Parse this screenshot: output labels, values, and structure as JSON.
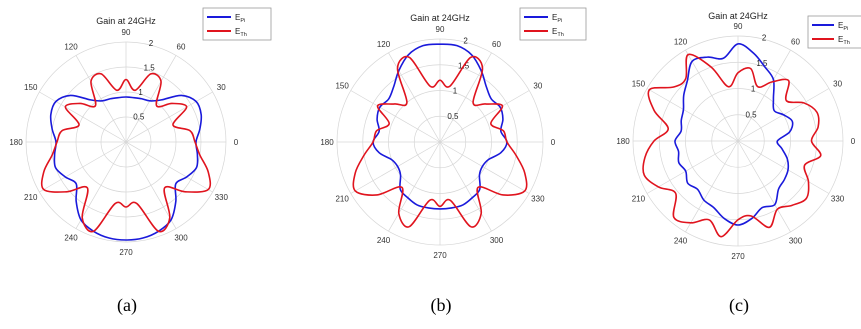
{
  "colors": {
    "pi": "#1a1adb",
    "th": "#e0141e",
    "grid": "#d6d6d6"
  },
  "captions": [
    "(a)",
    "(b)",
    "(c)"
  ],
  "chart_data": [
    {
      "type": "polar-line",
      "title": "Gain at 24GHz",
      "rlim": [
        0,
        2
      ],
      "radial_ticks": [
        "0.5",
        "1",
        "1.5",
        "2"
      ],
      "angle_ticks": [
        "0",
        "30",
        "60",
        "90",
        "120",
        "150",
        "180",
        "210",
        "240",
        "270",
        "300",
        "330"
      ],
      "legend": {
        "position": "top-right",
        "entries": [
          {
            "main": "E",
            "sub": "Pi"
          },
          {
            "main": "E",
            "sub": "Th"
          }
        ]
      },
      "grid": true,
      "series": [
        {
          "key": "pi",
          "theta": [
            0,
            10,
            20,
            30,
            40,
            50,
            60,
            70,
            80,
            90,
            100,
            110,
            120,
            130,
            140,
            150,
            160,
            170,
            180,
            190,
            200,
            210,
            220,
            230,
            240,
            250,
            260,
            270,
            280,
            290,
            300,
            310,
            320,
            330,
            340,
            350
          ],
          "r": [
            1.4,
            1.5,
            1.6,
            1.62,
            1.45,
            1.1,
            0.95,
            0.92,
            0.9,
            0.9,
            0.9,
            0.92,
            0.95,
            1.1,
            1.45,
            1.62,
            1.6,
            1.5,
            1.4,
            1.45,
            1.5,
            1.4,
            1.3,
            1.55,
            1.8,
            1.9,
            1.95,
            1.96,
            1.95,
            1.9,
            1.8,
            1.55,
            1.3,
            1.4,
            1.5,
            1.45
          ]
        },
        {
          "key": "th",
          "theta": [
            0,
            10,
            20,
            30,
            40,
            50,
            60,
            70,
            80,
            90,
            100,
            110,
            120,
            130,
            140,
            150,
            160,
            170,
            180,
            190,
            200,
            210,
            220,
            230,
            240,
            250,
            260,
            270,
            280,
            290,
            300,
            310,
            320,
            330,
            340,
            350
          ],
          "r": [
            1.38,
            1.3,
            1.0,
            1.4,
            1.2,
            0.95,
            1.4,
            1.45,
            1.05,
            1.25,
            1.05,
            1.45,
            1.4,
            0.95,
            1.2,
            1.4,
            1.0,
            1.3,
            1.38,
            1.5,
            1.75,
            1.9,
            1.55,
            1.2,
            1.75,
            1.9,
            1.25,
            1.3,
            1.25,
            1.9,
            1.75,
            1.2,
            1.55,
            1.9,
            1.75,
            1.5
          ]
        }
      ]
    },
    {
      "type": "polar-line",
      "title": "Gain at 24GHz",
      "rlim": [
        0,
        2
      ],
      "radial_ticks": [
        "0.5",
        "1",
        "1.5",
        "2"
      ],
      "angle_ticks": [
        "0",
        "30",
        "60",
        "90",
        "120",
        "150",
        "180",
        "210",
        "240",
        "270",
        "300",
        "330"
      ],
      "legend": {
        "position": "top-right",
        "entries": [
          {
            "main": "E",
            "sub": "Pi"
          },
          {
            "main": "E",
            "sub": "Th"
          }
        ]
      },
      "grid": true,
      "series": [
        {
          "key": "pi",
          "theta": [
            0,
            10,
            20,
            30,
            40,
            50,
            60,
            70,
            80,
            90,
            100,
            110,
            120,
            130,
            140,
            150,
            160,
            170,
            180,
            190,
            200,
            210,
            220,
            230,
            240,
            250,
            260,
            270,
            280,
            290,
            300,
            310,
            320,
            330,
            340,
            350
          ],
          "r": [
            1.3,
            1.2,
            1.3,
            1.35,
            1.3,
            1.4,
            1.6,
            1.8,
            1.9,
            1.9,
            1.9,
            1.8,
            1.6,
            1.4,
            1.3,
            1.35,
            1.3,
            1.2,
            1.3,
            1.2,
            1.0,
            0.95,
            1.0,
            1.2,
            1.25,
            1.3,
            1.3,
            1.3,
            1.3,
            1.3,
            1.25,
            1.2,
            1.0,
            0.95,
            1.0,
            1.2
          ]
        },
        {
          "key": "th",
          "theta": [
            0,
            10,
            20,
            30,
            40,
            50,
            60,
            70,
            80,
            90,
            100,
            110,
            120,
            130,
            140,
            150,
            160,
            170,
            180,
            190,
            200,
            210,
            220,
            230,
            240,
            250,
            260,
            270,
            280,
            290,
            300,
            310,
            320,
            330,
            340,
            350
          ],
          "r": [
            1.3,
            1.25,
            1.05,
            1.4,
            1.15,
            1.0,
            1.65,
            1.75,
            1.1,
            1.2,
            1.1,
            1.75,
            1.65,
            1.0,
            1.15,
            1.4,
            1.05,
            1.25,
            1.3,
            1.5,
            1.75,
            1.9,
            1.6,
            1.15,
            1.6,
            1.75,
            1.15,
            1.25,
            1.15,
            1.75,
            1.6,
            1.15,
            1.6,
            1.9,
            1.75,
            1.5
          ]
        }
      ]
    },
    {
      "type": "polar-line",
      "title": "Gain at 24GHz",
      "rlim": [
        0,
        2
      ],
      "radial_ticks": [
        "0.5",
        "1",
        "1.5",
        "2"
      ],
      "angle_ticks": [
        "0",
        "30",
        "60",
        "90",
        "120",
        "150",
        "180",
        "210",
        "240",
        "270",
        "300",
        "330"
      ],
      "legend": {
        "position": "top-right",
        "entries": [
          {
            "main": "E",
            "sub": "Pi"
          },
          {
            "main": "E",
            "sub": "Th"
          }
        ]
      },
      "grid": true,
      "series": [
        {
          "key": "pi",
          "theta": [
            0,
            10,
            20,
            30,
            40,
            50,
            60,
            70,
            80,
            90,
            100,
            110,
            120,
            130,
            140,
            150,
            160,
            170,
            180,
            190,
            200,
            210,
            220,
            230,
            240,
            250,
            260,
            270,
            280,
            290,
            300,
            310,
            320,
            330,
            340,
            350
          ],
          "r": [
            0.75,
            1.0,
            1.1,
            1.0,
            0.9,
            1.05,
            1.35,
            1.5,
            1.7,
            1.85,
            1.6,
            1.7,
            1.75,
            1.5,
            1.35,
            1.2,
            1.15,
            1.1,
            1.2,
            1.15,
            1.2,
            1.15,
            1.25,
            1.2,
            1.3,
            1.35,
            1.5,
            1.6,
            1.5,
            1.35,
            1.4,
            1.2,
            1.15,
            1.1,
            1.0,
            0.85
          ]
        },
        {
          "key": "th",
          "theta": [
            0,
            10,
            20,
            30,
            40,
            50,
            60,
            70,
            80,
            90,
            100,
            110,
            120,
            130,
            140,
            150,
            160,
            170,
            180,
            190,
            200,
            210,
            220,
            230,
            240,
            250,
            260,
            270,
            280,
            290,
            300,
            310,
            320,
            330,
            340,
            350
          ],
          "r": [
            1.4,
            1.55,
            1.6,
            1.45,
            1.2,
            1.5,
            1.3,
            1.1,
            1.4,
            1.3,
            1.05,
            1.5,
            1.9,
            1.55,
            1.6,
            1.95,
            1.7,
            1.35,
            1.6,
            1.8,
            1.9,
            1.75,
            1.55,
            1.9,
            1.8,
            1.6,
            1.85,
            1.5,
            1.45,
            1.75,
            1.5,
            1.6,
            1.7,
            1.55,
            1.35,
            1.6
          ]
        }
      ]
    }
  ]
}
